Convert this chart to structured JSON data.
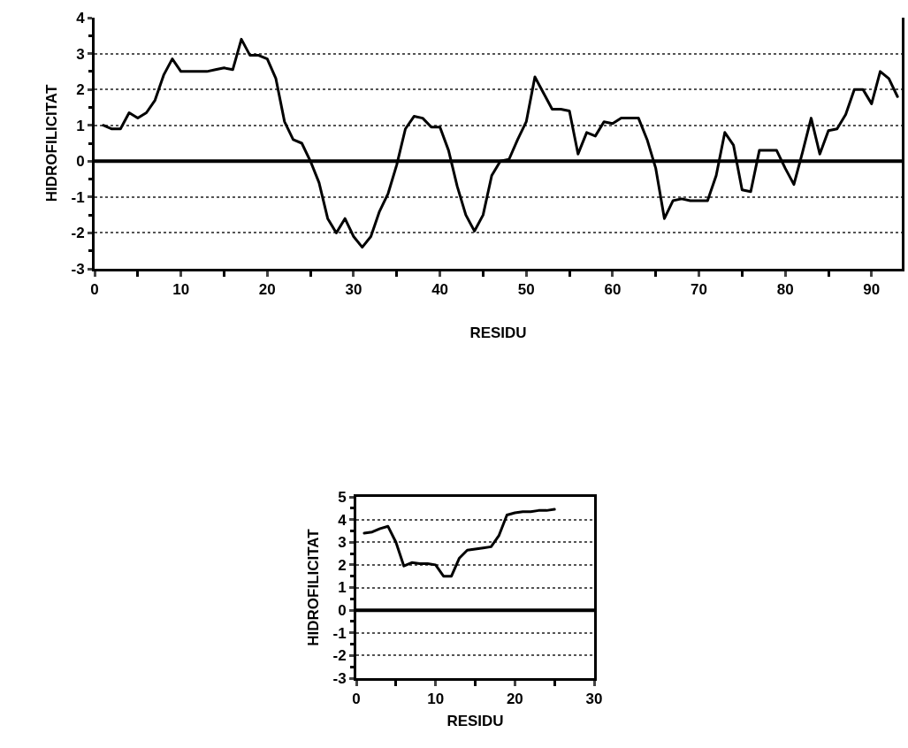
{
  "chart_data": [
    {
      "type": "line",
      "xlabel": "RESIDU",
      "ylabel": "HIDROFILICITAT",
      "xlim": [
        0,
        93.5
      ],
      "ylim": [
        -3,
        4
      ],
      "xticks": [
        0,
        {
          "value": 5,
          "label": null
        },
        10,
        {
          "value": 15,
          "label": null
        },
        20,
        {
          "value": 25,
          "label": null
        },
        30,
        {
          "value": 35,
          "label": null
        },
        40,
        {
          "value": 45,
          "label": null
        },
        50,
        {
          "value": 55,
          "label": null
        },
        60,
        {
          "value": 65,
          "label": null
        },
        70,
        {
          "value": 75,
          "label": null
        },
        80,
        {
          "value": 85,
          "label": null
        },
        90
      ],
      "yticks": [
        -3,
        {
          "value": -2.5,
          "label": null
        },
        -2,
        {
          "value": -1.5,
          "label": null
        },
        -1,
        {
          "value": -0.5,
          "label": null
        },
        0,
        {
          "value": 0.5,
          "label": null
        },
        1,
        {
          "value": 1.5,
          "label": null
        },
        2,
        {
          "value": 2.5,
          "label": null
        },
        3,
        {
          "value": 3.5,
          "label": null
        },
        4
      ],
      "grid": "y",
      "marker": "none",
      "line_style": "solid",
      "ref_lines": [
        {
          "axis": "y",
          "value": 0,
          "color": "#000000"
        }
      ],
      "x": [
        1,
        2,
        3,
        4,
        5,
        6,
        7,
        8,
        9,
        10,
        11,
        12,
        13,
        14,
        15,
        16,
        17,
        18,
        19,
        20,
        21,
        22,
        23,
        24,
        25,
        26,
        27,
        28,
        29,
        30,
        31,
        32,
        33,
        34,
        35,
        36,
        37,
        38,
        39,
        40,
        41,
        42,
        43,
        44,
        45,
        46,
        47,
        48,
        49,
        50,
        51,
        52,
        53,
        54,
        55,
        56,
        57,
        58,
        59,
        60,
        61,
        62,
        63,
        64,
        65,
        66,
        67,
        68,
        69,
        70,
        71,
        72,
        73,
        74,
        75,
        76,
        77,
        78,
        79,
        80,
        81,
        82,
        83,
        84,
        85,
        86,
        87,
        88,
        89,
        90,
        91,
        92,
        93
      ],
      "series": [
        {
          "color": "#000000",
          "values": [
            1.0,
            0.9,
            0.9,
            1.35,
            1.2,
            1.35,
            1.7,
            2.4,
            2.85,
            2.5,
            2.5,
            2.5,
            2.5,
            2.55,
            2.6,
            2.55,
            3.4,
            2.95,
            2.95,
            2.85,
            2.3,
            1.1,
            0.6,
            0.5,
            0.0,
            -0.6,
            -1.6,
            -2.0,
            -1.6,
            -2.1,
            -2.4,
            -2.1,
            -1.4,
            -0.9,
            -0.1,
            0.9,
            1.25,
            1.2,
            0.95,
            0.95,
            0.3,
            -0.7,
            -1.5,
            -1.95,
            -1.5,
            -0.4,
            0.0,
            0.05,
            0.6,
            1.1,
            2.35,
            1.9,
            1.45,
            1.45,
            1.4,
            0.2,
            0.8,
            0.7,
            1.1,
            1.05,
            1.2,
            1.2,
            1.2,
            0.6,
            -0.2,
            -1.6,
            -1.1,
            -1.05,
            -1.1,
            -1.1,
            -1.1,
            -0.4,
            0.8,
            0.45,
            -0.8,
            -0.85,
            0.3,
            0.3,
            0.3,
            -0.2,
            -0.65,
            0.25,
            1.2,
            0.2,
            0.85,
            0.9,
            1.3,
            2.0,
            2.0,
            1.6,
            2.5,
            2.3,
            1.8
          ]
        }
      ]
    },
    {
      "type": "line",
      "xlabel": "RESIDU",
      "ylabel": "HIDROFILICITAT",
      "xlim": [
        0,
        30
      ],
      "ylim": [
        -3,
        5
      ],
      "xticks": [
        0,
        {
          "value": 5,
          "label": null
        },
        10,
        {
          "value": 15,
          "label": null
        },
        20,
        {
          "value": 25,
          "label": null
        },
        30
      ],
      "yticks": [
        -3,
        {
          "value": -2.5,
          "label": null
        },
        -2,
        {
          "value": -1.5,
          "label": null
        },
        -1,
        {
          "value": -0.5,
          "label": null
        },
        0,
        {
          "value": 0.5,
          "label": null
        },
        1,
        {
          "value": 1.5,
          "label": null
        },
        2,
        {
          "value": 2.5,
          "label": null
        },
        3,
        {
          "value": 3.5,
          "label": null
        },
        4,
        {
          "value": 4.5,
          "label": null
        },
        5
      ],
      "grid": "y",
      "marker": "none",
      "line_style": "solid",
      "ref_lines": [
        {
          "axis": "y",
          "value": 0,
          "color": "#000000"
        }
      ],
      "x": [
        1,
        2,
        3,
        4,
        5,
        6,
        7,
        8,
        9,
        10,
        11,
        12,
        13,
        14,
        15,
        16,
        17,
        18,
        19,
        20,
        21,
        22,
        23,
        24,
        25
      ],
      "series": [
        {
          "color": "#000000",
          "values": [
            3.4,
            3.45,
            3.6,
            3.7,
            3.0,
            1.95,
            2.1,
            2.05,
            2.05,
            2.0,
            1.5,
            1.5,
            2.3,
            2.65,
            2.7,
            2.75,
            2.8,
            3.3,
            4.2,
            4.3,
            4.35,
            4.35,
            4.4,
            4.4,
            4.45
          ]
        }
      ]
    }
  ]
}
